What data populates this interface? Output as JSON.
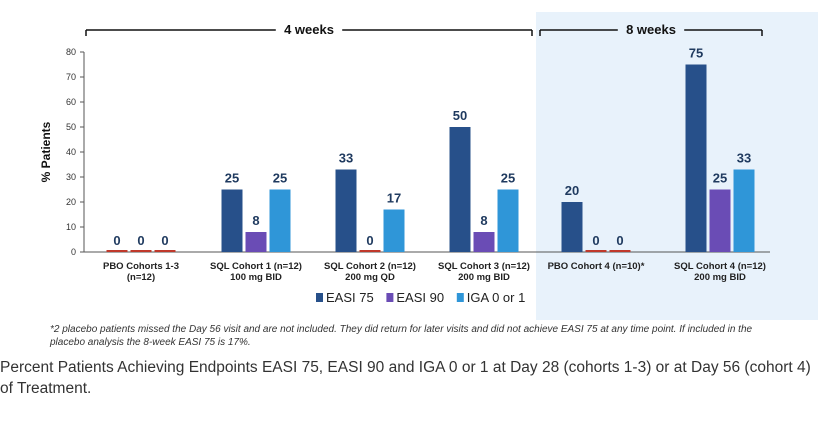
{
  "chart_data": {
    "type": "bar",
    "ylabel": "% Patients",
    "ylim": [
      0,
      80
    ],
    "yticks": [
      0,
      10,
      20,
      30,
      40,
      50,
      60,
      70,
      80
    ],
    "categories": [
      [
        "PBO Cohorts 1-3",
        "(n=12)"
      ],
      [
        "SQL Cohort 1 (n=12)",
        "100 mg BID"
      ],
      [
        "SQL Cohort 2 (n=12)",
        "200 mg QD"
      ],
      [
        "SQL Cohort 3 (n=12)",
        "200 mg BID"
      ],
      [
        "PBO Cohort 4 (n=10)*"
      ],
      [
        "SQL Cohort 4 (n=12)",
        "200 mg BID"
      ]
    ],
    "series": [
      {
        "name": "EASI 75",
        "color": "#27508a",
        "values": [
          0,
          25,
          33,
          50,
          20,
          75
        ]
      },
      {
        "name": "EASI 90",
        "color": "#6a4cb5",
        "values": [
          0,
          8,
          0,
          8,
          0,
          25
        ]
      },
      {
        "name": "IGA 0 or 1",
        "color": "#2f96d8",
        "values": [
          0,
          25,
          17,
          25,
          0,
          33
        ]
      }
    ],
    "zero_color": "#c0392b",
    "groups": [
      {
        "label": "4 weeks",
        "categories": [
          0,
          3
        ]
      },
      {
        "label": "8 weeks",
        "categories": [
          4,
          5
        ],
        "shaded": true,
        "shade": "#e8f2fb"
      }
    ],
    "legend_position": "bottom"
  },
  "footnote": "*2 placebo patients missed the Day 56 visit and are not included. They did return for later visits and did not achieve EASI 75 at any time point. If included in the placebo analysis the 8-week EASI 75 is 17%.",
  "caption": "Percent Patients Achieving Endpoints EASI 75, EASI 90 and IGA 0 or 1 at Day 28 (cohorts 1-3) or at Day 56 (cohort 4) of Treatment."
}
